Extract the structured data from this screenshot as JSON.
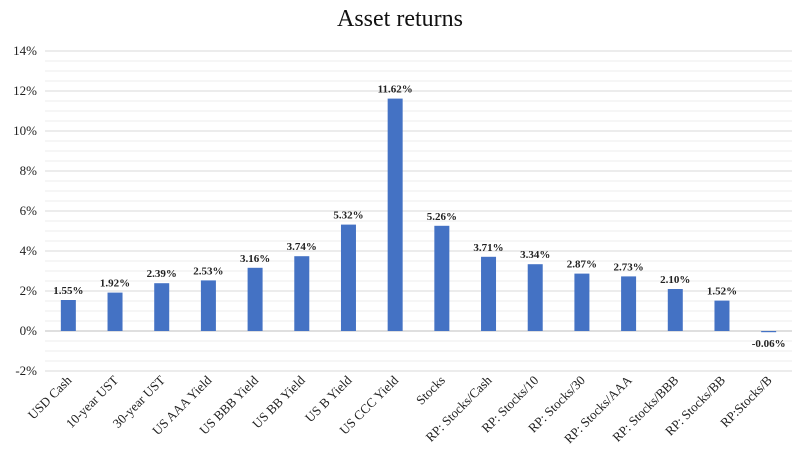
{
  "chart_data": {
    "type": "bar",
    "title": "Asset returns",
    "xlabel": "",
    "ylabel": "",
    "ylim": [
      -2,
      14
    ],
    "y_ticks": [
      "-2%",
      "0%",
      "2%",
      "4%",
      "6%",
      "8%",
      "10%",
      "12%",
      "14%"
    ],
    "y_tick_values": [
      -2,
      0,
      2,
      4,
      6,
      8,
      10,
      12,
      14
    ],
    "grid": true,
    "legend": "none",
    "bar_color": "#4472C4",
    "categories": [
      "USD Cash",
      "10-year UST",
      "30-year UST",
      "US AAA Yield",
      "US BBB Yield",
      "US BB Yield",
      "US B Yield",
      "US CCC Yield",
      "Stocks",
      "RP: Stocks/Cash",
      "RP: Stocks/10",
      "RP: Stocks/30",
      "RP: Stocks/AAA",
      "RP: Stocks/BBB",
      "RP: Stocks/BB",
      "RP:Stocks/B"
    ],
    "values": [
      1.55,
      1.92,
      2.39,
      2.53,
      3.16,
      3.74,
      5.32,
      11.62,
      5.26,
      3.71,
      3.34,
      2.87,
      2.73,
      2.1,
      1.52,
      -0.06
    ],
    "data_labels": [
      "1.55%",
      "1.92%",
      "2.39%",
      "2.53%",
      "3.16%",
      "3.74%",
      "5.32%",
      "11.62%",
      "5.26%",
      "3.71%",
      "3.34%",
      "2.87%",
      "2.73%",
      "2.10%",
      "1.52%",
      "-0.06%"
    ]
  }
}
